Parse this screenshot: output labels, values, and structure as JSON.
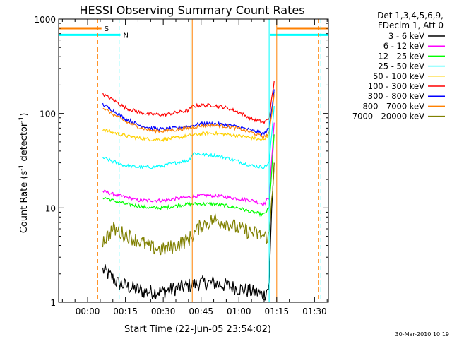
{
  "chart_data": {
    "type": "line",
    "title": "HESSI Observing Summary Count Rates",
    "xlabel": "Start Time (22-Jun-05 23:54:02)",
    "ylabel_main": "Count Rate (s",
    "ylabel_sup1": "-1",
    "ylabel_mid": " detector",
    "ylabel_sup2": "-1",
    "ylabel_end": ")",
    "yscale": "log",
    "ylim": [
      1,
      1000
    ],
    "xlim_min": [
      -11.5,
      95.5
    ],
    "xticks": [
      {
        "v": 0,
        "label": "00:00"
      },
      {
        "v": 15,
        "label": "00:15"
      },
      {
        "v": 30,
        "label": "00:30"
      },
      {
        "v": 45,
        "label": "00:45"
      },
      {
        "v": 60,
        "label": "01:00"
      },
      {
        "v": 75,
        "label": "01:15"
      },
      {
        "v": 90,
        "label": "01:30"
      }
    ],
    "yticks": [
      {
        "v": 1,
        "label": "1"
      },
      {
        "v": 10,
        "label": "10"
      },
      {
        "v": 100,
        "label": "100"
      },
      {
        "v": 1000,
        "label": "1000"
      }
    ],
    "legend_header": [
      "Det 1,3,4,5,6,9,",
      "FDecim 1, Att 0"
    ],
    "timestamp": "30-Mar-2010 10:19",
    "annotations": [
      {
        "label": "S",
        "color": "#ff8000",
        "x0": -11.5,
        "x1": 5.5,
        "y": 800
      },
      {
        "label": "N",
        "color": "#00ffff",
        "x0": -11.5,
        "x1": 13,
        "y": 680
      }
    ],
    "vlines": [
      {
        "x": 4,
        "color": "#ff8000",
        "dash": true
      },
      {
        "x": 12.5,
        "color": "#00ffff",
        "dash": true
      },
      {
        "x": 41,
        "color": "#00ffff",
        "dash": false
      },
      {
        "x": 41.5,
        "color": "#ff8000",
        "dash": false
      },
      {
        "x": 72,
        "color": "#00ffff",
        "dash": false
      },
      {
        "x": 75,
        "color": "#ff8000",
        "dash": false
      },
      {
        "x": 91.5,
        "color": "#ff8000",
        "dash": true
      },
      {
        "x": 92.5,
        "color": "#00ffff",
        "dash": true
      }
    ],
    "right_bars": [
      {
        "color": "#ff8000",
        "x0": 75,
        "x1": 95.5,
        "y": 800
      },
      {
        "color": "#00ffff",
        "x0": 72.5,
        "x1": 95.5,
        "y": 680
      }
    ],
    "series": [
      {
        "name": "3 - 6 keV",
        "color": "#000000",
        "x": [
          6,
          8,
          10,
          12,
          15,
          18,
          22,
          26,
          30,
          35,
          40,
          45,
          50,
          55,
          60,
          65,
          70,
          72,
          73,
          74
        ],
        "y": [
          2.2,
          2.0,
          1.8,
          1.6,
          1.5,
          1.4,
          1.3,
          1.3,
          1.3,
          1.4,
          1.5,
          1.6,
          1.6,
          1.5,
          1.4,
          1.3,
          1.2,
          1.5,
          10,
          30
        ]
      },
      {
        "name": "6 - 12 keV",
        "color": "#ff00ff",
        "x": [
          6,
          10,
          15,
          20,
          25,
          30,
          35,
          40,
          45,
          50,
          55,
          60,
          65,
          70,
          72,
          74
        ],
        "y": [
          15,
          14,
          13,
          12,
          12,
          12,
          12.5,
          13,
          13.5,
          13.5,
          13,
          12.5,
          12,
          11,
          13,
          80
        ]
      },
      {
        "name": "12 - 25 keV",
        "color": "#00ff00",
        "x": [
          6,
          10,
          15,
          20,
          25,
          30,
          35,
          40,
          45,
          50,
          55,
          60,
          65,
          70,
          72,
          74
        ],
        "y": [
          13,
          12,
          11,
          10.5,
          10,
          10,
          10.5,
          11,
          11,
          11,
          10.5,
          10,
          9,
          8.5,
          10,
          60
        ]
      },
      {
        "name": "25 - 50 keV",
        "color": "#00ffff",
        "x": [
          6,
          10,
          15,
          20,
          25,
          30,
          35,
          40,
          42,
          45,
          50,
          55,
          60,
          65,
          70,
          72,
          74
        ],
        "y": [
          34,
          31,
          28,
          27,
          27,
          28,
          30,
          32,
          38,
          37,
          36,
          34,
          31,
          28,
          27,
          30,
          120
        ]
      },
      {
        "name": "50 - 100 keV",
        "color": "#ffd000",
        "x": [
          6,
          10,
          15,
          20,
          25,
          30,
          35,
          40,
          45,
          50,
          55,
          60,
          65,
          70,
          72,
          74
        ],
        "y": [
          68,
          63,
          58,
          55,
          53,
          53,
          55,
          58,
          61,
          62,
          60,
          58,
          55,
          52,
          60,
          170
        ]
      },
      {
        "name": "100 - 300 keV",
        "color": "#ff0000",
        "x": [
          6,
          10,
          15,
          20,
          25,
          30,
          35,
          40,
          42,
          45,
          50,
          55,
          60,
          65,
          70,
          72,
          74
        ],
        "y": [
          160,
          140,
          115,
          104,
          98,
          97,
          102,
          108,
          120,
          122,
          122,
          115,
          103,
          88,
          80,
          90,
          220
        ]
      },
      {
        "name": "300 - 800 keV",
        "color": "#0000ff",
        "x": [
          6,
          10,
          15,
          20,
          25,
          30,
          35,
          40,
          45,
          50,
          55,
          60,
          65,
          70,
          72,
          74
        ],
        "y": [
          125,
          108,
          88,
          76,
          70,
          68,
          70,
          73,
          78,
          78,
          76,
          72,
          66,
          61,
          70,
          180
        ]
      },
      {
        "name": "800 - 7000 keV",
        "color": "#ff8000",
        "x": [
          6,
          10,
          15,
          20,
          25,
          30,
          35,
          40,
          45,
          50,
          55,
          60,
          65,
          70,
          72,
          74
        ],
        "y": [
          115,
          98,
          82,
          72,
          66,
          65,
          67,
          70,
          74,
          75,
          73,
          69,
          63,
          56,
          62,
          160
        ]
      },
      {
        "name": "7000 - 20000 keV",
        "color": "#808000",
        "x": [
          6,
          8,
          10,
          15,
          20,
          25,
          30,
          35,
          40,
          45,
          50,
          55,
          60,
          65,
          70,
          72,
          74
        ],
        "y": [
          4.5,
          5,
          6,
          5.2,
          4.5,
          3.8,
          3.6,
          4,
          4.6,
          6.5,
          7.5,
          7,
          6,
          5.5,
          5,
          5,
          30
        ]
      }
    ]
  }
}
